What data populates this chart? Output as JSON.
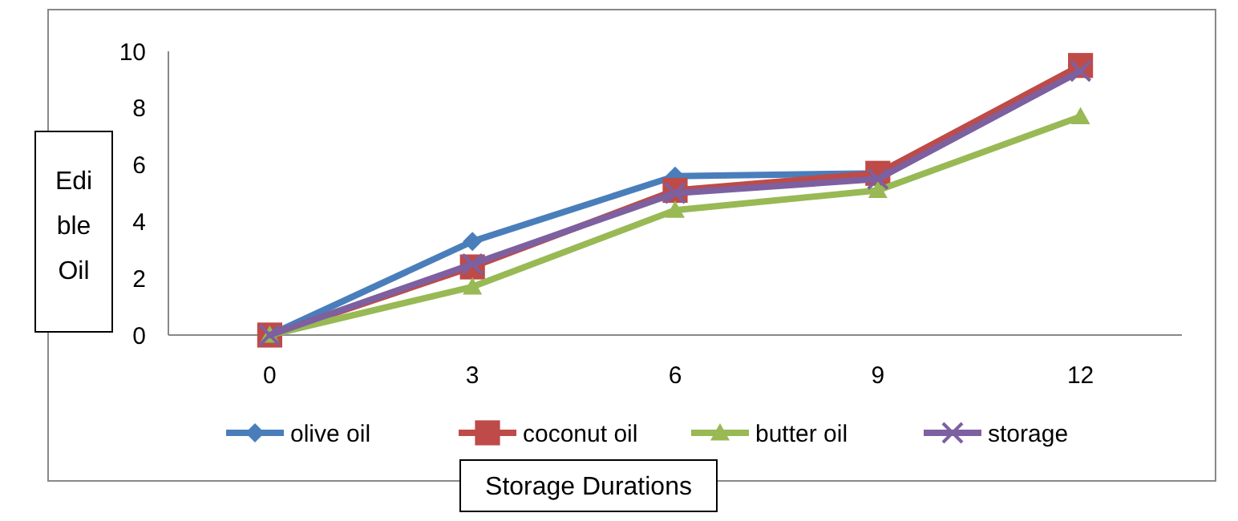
{
  "chart_data": {
    "type": "line",
    "xlabel": "Storage Durations",
    "ylabel": "Edible Oil",
    "categories": [
      "0",
      "3",
      "6",
      "9",
      "12"
    ],
    "ylim": [
      0,
      10
    ],
    "yticks": [
      0,
      2,
      4,
      6,
      8,
      10
    ],
    "grid": false,
    "legend": "bottom",
    "series": [
      {
        "name": "olive oil",
        "color": "#4a7ebb",
        "marker": "diamond",
        "values": [
          0,
          3.3,
          5.6,
          5.7,
          9.4
        ]
      },
      {
        "name": "coconut oil",
        "color": "#be4b48",
        "marker": "square",
        "values": [
          0,
          2.4,
          5.1,
          5.7,
          9.5
        ]
      },
      {
        "name": "butter oil",
        "color": "#98b954",
        "marker": "triangle",
        "values": [
          0,
          1.7,
          4.4,
          5.1,
          7.7
        ]
      },
      {
        "name": "storage",
        "color": "#7d60a0",
        "marker": "cross",
        "values": [
          0,
          2.5,
          5.0,
          5.5,
          9.3
        ]
      }
    ]
  }
}
